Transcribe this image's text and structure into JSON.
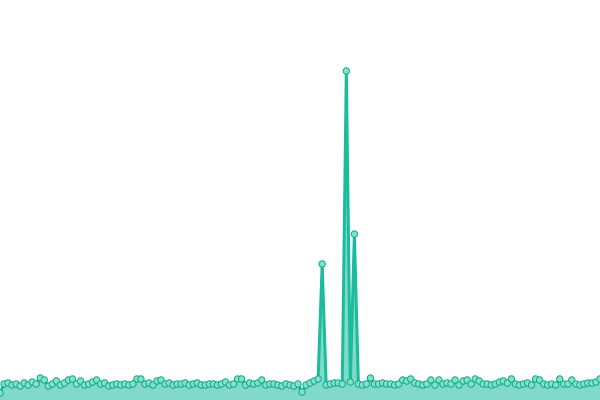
{
  "chart_data": {
    "type": "area",
    "values": [
      7,
      16,
      17,
      15,
      16,
      14,
      17,
      15,
      18,
      16,
      22,
      20,
      14,
      16,
      19,
      15,
      17,
      20,
      21,
      16,
      19,
      15,
      16,
      18,
      20,
      16,
      17,
      14,
      15,
      16,
      15,
      16,
      15,
      16,
      21,
      21,
      16,
      17,
      15,
      19,
      20,
      16,
      17,
      15,
      16,
      16,
      17,
      15,
      16,
      17,
      15,
      15,
      16,
      16,
      15,
      16,
      18,
      15,
      16,
      21,
      21,
      15,
      17,
      16,
      17,
      20,
      15,
      16,
      16,
      15,
      14,
      16,
      15,
      14,
      16,
      8,
      15,
      17,
      19,
      21,
      136,
      15,
      16,
      17,
      17,
      16,
      329,
      18,
      166,
      16,
      15,
      16,
      22,
      16,
      16,
      17,
      16,
      16,
      15,
      16,
      20,
      19,
      21,
      17,
      16,
      15,
      16,
      20,
      15,
      20,
      16,
      17,
      16,
      20,
      15,
      19,
      20,
      16,
      21,
      19,
      16,
      16,
      15,
      16,
      18,
      19,
      17,
      21,
      16,
      15,
      16,
      17,
      15,
      21,
      20,
      16,
      15,
      16,
      15,
      21,
      16,
      16,
      20,
      16,
      15,
      16,
      17,
      17,
      18,
      21
    ],
    "ylim": [
      0,
      400
    ],
    "color": "#1abc9c"
  }
}
